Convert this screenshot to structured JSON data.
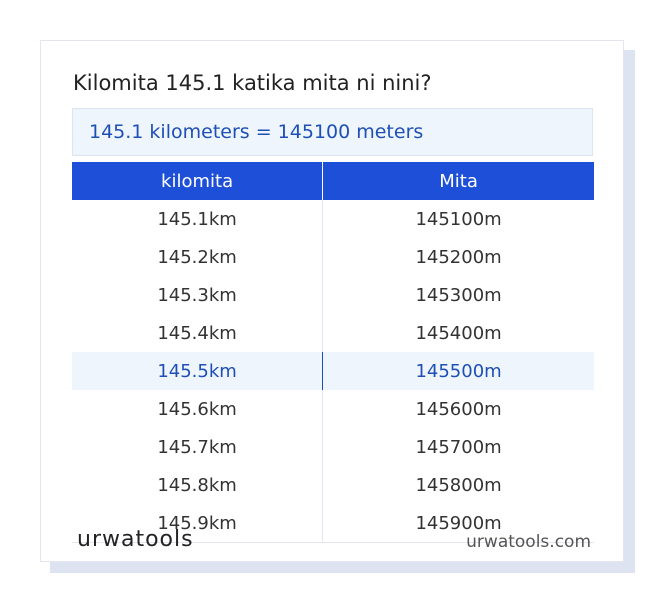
{
  "title": "Kilomita 145.1 katika mita ni nini?",
  "result": "145.1 kilometers = 145100 meters",
  "table": {
    "headers": [
      "kilomita",
      "Mita"
    ],
    "rows": [
      [
        "145.1km",
        "145100m"
      ],
      [
        "145.2km",
        "145200m"
      ],
      [
        "145.3km",
        "145300m"
      ],
      [
        "145.4km",
        "145400m"
      ],
      [
        "145.5km",
        "145500m"
      ],
      [
        "145.6km",
        "145600m"
      ],
      [
        "145.7km",
        "145700m"
      ],
      [
        "145.8km",
        "145800m"
      ],
      [
        "145.9km",
        "145900m"
      ]
    ]
  },
  "footer": {
    "logo": "urwatools",
    "site": "urwatools.com"
  }
}
